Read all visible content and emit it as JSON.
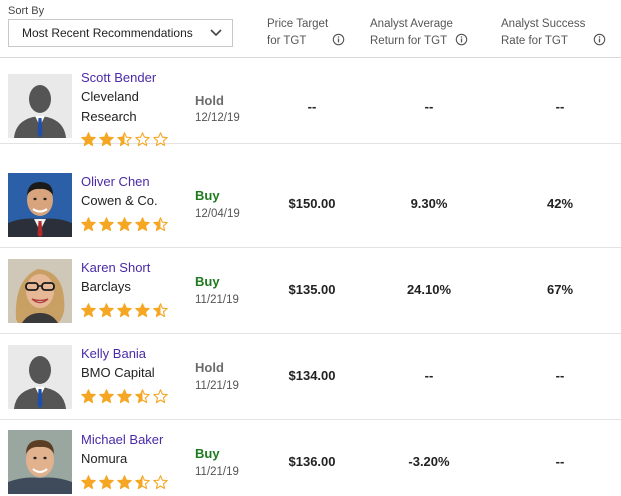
{
  "header": {
    "sort_label": "Sort By",
    "sort_value": "Most Recent Recommendations",
    "col_price": [
      "Price Target",
      "for TGT"
    ],
    "col_return": [
      "Analyst Average",
      "Return for TGT"
    ],
    "col_success": [
      "Analyst Success",
      "Rate for TGT"
    ]
  },
  "colors": {
    "name_link": "#4a2aa8",
    "buy": "#1e7a1e",
    "hold": "#6b6b6b",
    "star": "#f5a623"
  },
  "analysts": [
    {
      "name": "Scott Bender",
      "firm": [
        "Cleveland",
        "Research"
      ],
      "stars": 2.5,
      "rating": "Hold",
      "date": "12/12/19",
      "price_target": "--",
      "avg_return": "--",
      "success_rate": "--",
      "avatar": "placeholder-silhouette"
    },
    {
      "name": "Oliver Chen",
      "firm": [
        "Cowen & Co."
      ],
      "stars": 4.5,
      "rating": "Buy",
      "date": "12/04/19",
      "price_target": "$150.00",
      "avg_return": "9.30%",
      "success_rate": "42%",
      "avatar": "photo"
    },
    {
      "name": "Karen Short",
      "firm": [
        "Barclays"
      ],
      "stars": 4.5,
      "rating": "Buy",
      "date": "11/21/19",
      "price_target": "$135.00",
      "avg_return": "24.10%",
      "success_rate": "67%",
      "avatar": "photo"
    },
    {
      "name": "Kelly Bania",
      "firm": [
        "BMO Capital"
      ],
      "stars": 3.5,
      "rating": "Hold",
      "date": "11/21/19",
      "price_target": "$134.00",
      "avg_return": "--",
      "success_rate": "--",
      "avatar": "placeholder-silhouette"
    },
    {
      "name": "Michael Baker",
      "firm": [
        "Nomura"
      ],
      "stars": 3.5,
      "rating": "Buy",
      "date": "11/21/19",
      "price_target": "$136.00",
      "avg_return": "-3.20%",
      "success_rate": "--",
      "avatar": "photo"
    }
  ]
}
